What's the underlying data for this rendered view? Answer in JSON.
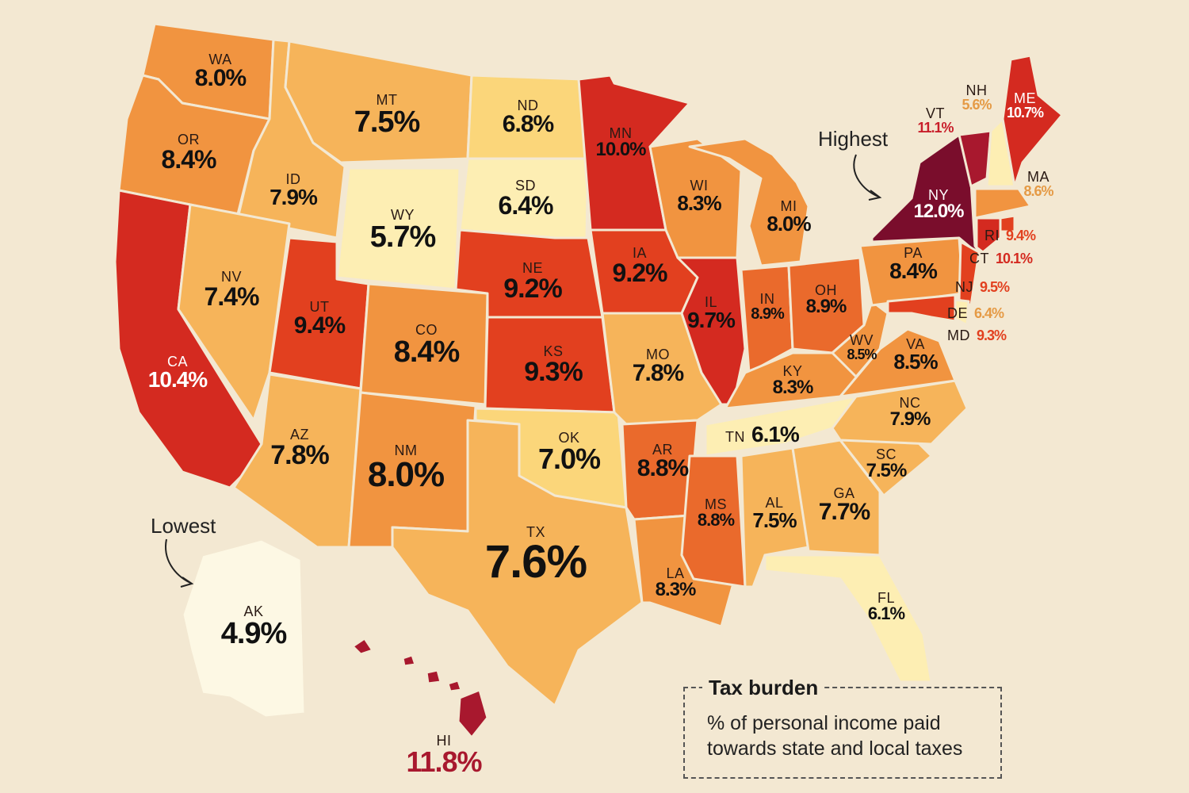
{
  "colors": {
    "background": "#f3e8d2",
    "scale": [
      "#fdf8e4",
      "#fdeeb3",
      "#fbd67a",
      "#f6b45a",
      "#f19440",
      "#ea6a2c",
      "#e2401f",
      "#d42a20",
      "#a8182e",
      "#7a0d2c"
    ]
  },
  "annotations": {
    "highest": "Highest",
    "lowest": "Lowest"
  },
  "legend": {
    "title": "Tax burden",
    "description": "% of personal income paid towards state and local taxes"
  },
  "states": [
    {
      "id": "WA",
      "abbr": "WA",
      "value": "8.0%",
      "num": 8.0
    },
    {
      "id": "OR",
      "abbr": "OR",
      "value": "8.4%",
      "num": 8.4
    },
    {
      "id": "CA",
      "abbr": "CA",
      "value": "10.4%",
      "num": 10.4
    },
    {
      "id": "ID",
      "abbr": "ID",
      "value": "7.9%",
      "num": 7.9
    },
    {
      "id": "NV",
      "abbr": "NV",
      "value": "7.4%",
      "num": 7.4
    },
    {
      "id": "MT",
      "abbr": "MT",
      "value": "7.5%",
      "num": 7.5
    },
    {
      "id": "WY",
      "abbr": "WY",
      "value": "5.7%",
      "num": 5.7
    },
    {
      "id": "UT",
      "abbr": "UT",
      "value": "9.4%",
      "num": 9.4
    },
    {
      "id": "AZ",
      "abbr": "AZ",
      "value": "7.8%",
      "num": 7.8
    },
    {
      "id": "CO",
      "abbr": "CO",
      "value": "8.4%",
      "num": 8.4
    },
    {
      "id": "NM",
      "abbr": "NM",
      "value": "8.0%",
      "num": 8.0
    },
    {
      "id": "ND",
      "abbr": "ND",
      "value": "6.8%",
      "num": 6.8
    },
    {
      "id": "SD",
      "abbr": "SD",
      "value": "6.4%",
      "num": 6.4
    },
    {
      "id": "NE",
      "abbr": "NE",
      "value": "9.2%",
      "num": 9.2
    },
    {
      "id": "KS",
      "abbr": "KS",
      "value": "9.3%",
      "num": 9.3
    },
    {
      "id": "OK",
      "abbr": "OK",
      "value": "7.0%",
      "num": 7.0
    },
    {
      "id": "TX",
      "abbr": "TX",
      "value": "7.6%",
      "num": 7.6
    },
    {
      "id": "MN",
      "abbr": "MN",
      "value": "10.0%",
      "num": 10.0
    },
    {
      "id": "IA",
      "abbr": "IA",
      "value": "9.2%",
      "num": 9.2
    },
    {
      "id": "MO",
      "abbr": "MO",
      "value": "7.8%",
      "num": 7.8
    },
    {
      "id": "AR",
      "abbr": "AR",
      "value": "8.8%",
      "num": 8.8
    },
    {
      "id": "LA",
      "abbr": "LA",
      "value": "8.3%",
      "num": 8.3
    },
    {
      "id": "WI",
      "abbr": "WI",
      "value": "8.3%",
      "num": 8.3
    },
    {
      "id": "IL",
      "abbr": "IL",
      "value": "9.7%",
      "num": 9.7
    },
    {
      "id": "MI",
      "abbr": "MI",
      "value": "8.0%",
      "num": 8.0
    },
    {
      "id": "IN",
      "abbr": "IN",
      "value": "8.9%",
      "num": 8.9
    },
    {
      "id": "OH",
      "abbr": "OH",
      "value": "8.9%",
      "num": 8.9
    },
    {
      "id": "KY",
      "abbr": "KY",
      "value": "8.3%",
      "num": 8.3
    },
    {
      "id": "TN",
      "abbr": "TN",
      "value": "6.1%",
      "num": 6.1
    },
    {
      "id": "MS",
      "abbr": "MS",
      "value": "8.8%",
      "num": 8.8
    },
    {
      "id": "AL",
      "abbr": "AL",
      "value": "7.5%",
      "num": 7.5
    },
    {
      "id": "GA",
      "abbr": "GA",
      "value": "7.7%",
      "num": 7.7
    },
    {
      "id": "FL",
      "abbr": "FL",
      "value": "6.1%",
      "num": 6.1
    },
    {
      "id": "SC",
      "abbr": "SC",
      "value": "7.5%",
      "num": 7.5
    },
    {
      "id": "NC",
      "abbr": "NC",
      "value": "7.9%",
      "num": 7.9
    },
    {
      "id": "VA",
      "abbr": "VA",
      "value": "8.5%",
      "num": 8.5
    },
    {
      "id": "WV",
      "abbr": "WV",
      "value": "8.5%",
      "num": 8.5
    },
    {
      "id": "PA",
      "abbr": "PA",
      "value": "8.4%",
      "num": 8.4
    },
    {
      "id": "NY",
      "abbr": "NY",
      "value": "12.0%",
      "num": 12.0
    },
    {
      "id": "VT",
      "abbr": "VT",
      "value": "11.1%",
      "num": 11.1
    },
    {
      "id": "NH",
      "abbr": "NH",
      "value": "5.6%",
      "num": 5.6
    },
    {
      "id": "ME",
      "abbr": "ME",
      "value": "10.7%",
      "num": 10.7
    },
    {
      "id": "MA",
      "abbr": "MA",
      "value": "8.6%",
      "num": 8.6
    },
    {
      "id": "RI",
      "abbr": "RI",
      "value": "9.4%",
      "num": 9.4
    },
    {
      "id": "CT",
      "abbr": "CT",
      "value": "10.1%",
      "num": 10.1
    },
    {
      "id": "NJ",
      "abbr": "NJ",
      "value": "9.5%",
      "num": 9.5
    },
    {
      "id": "DE",
      "abbr": "DE",
      "value": "6.4%",
      "num": 6.4
    },
    {
      "id": "MD",
      "abbr": "MD",
      "value": "9.3%",
      "num": 9.3
    },
    {
      "id": "AK",
      "abbr": "AK",
      "value": "4.9%",
      "num": 4.9
    },
    {
      "id": "HI",
      "abbr": "HI",
      "value": "11.8%",
      "num": 11.8
    }
  ]
}
